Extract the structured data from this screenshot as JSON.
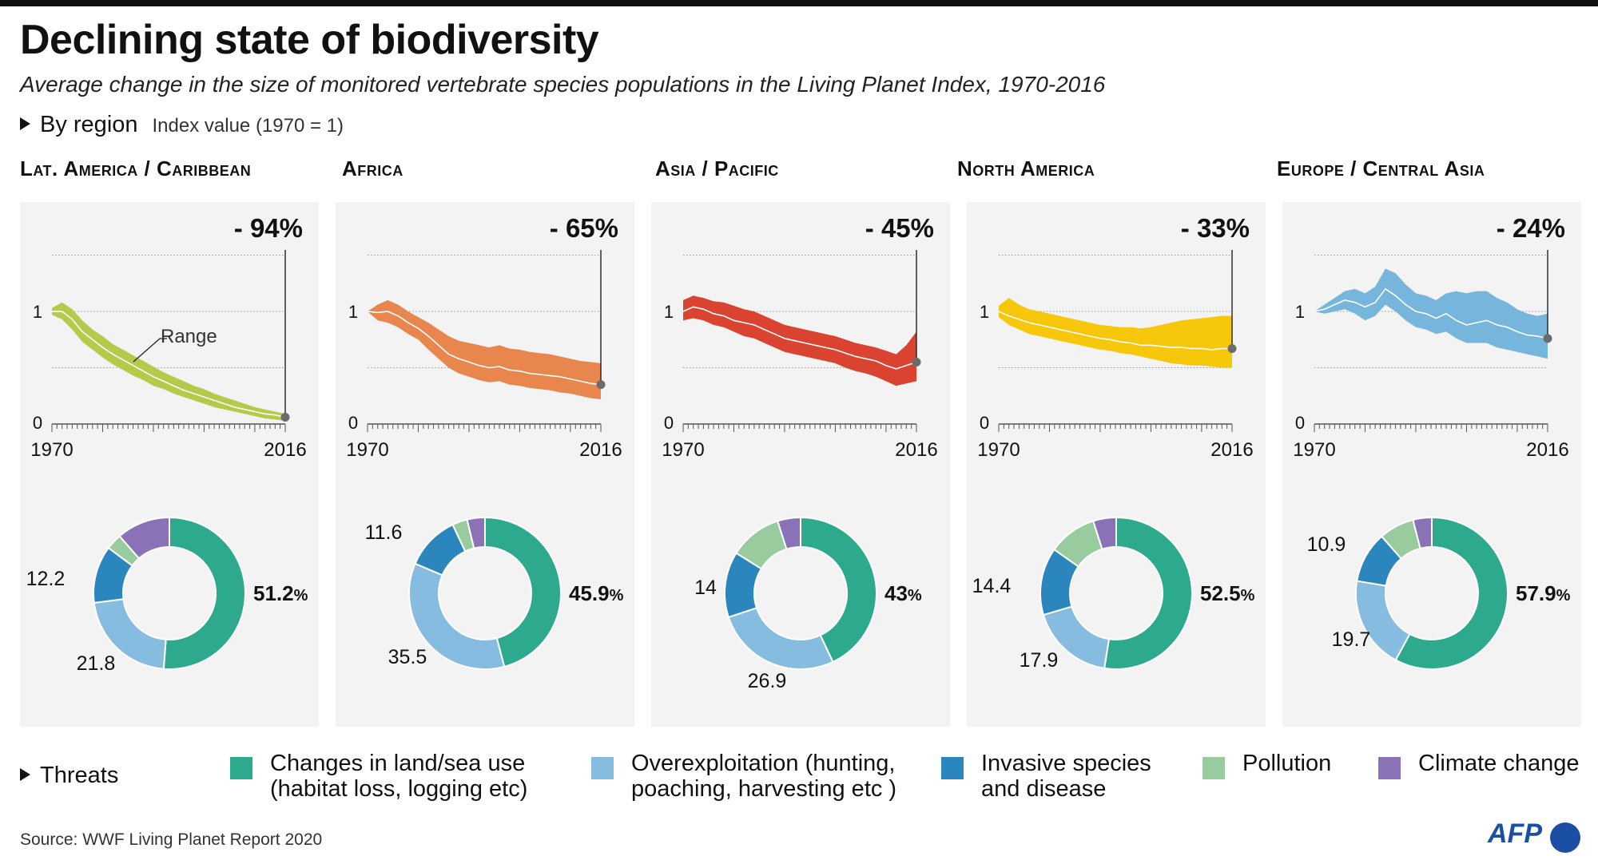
{
  "title": "Declining state of biodiversity",
  "subtitle": "Average change in the size of monitored vertebrate species populations in the Living Planet Index, 1970-2016",
  "by_region_label": "By region",
  "index_label": "Index value (1970 = 1)",
  "threats_label": "Threats",
  "source": "Source: WWF Living Planet Report 2020",
  "logo": "AFP",
  "chart_data": {
    "type": "line",
    "x_start_label": "1970",
    "x_end_label": "2016",
    "y_tick_labels": [
      "1",
      "0"
    ],
    "range_annotation": "Range",
    "threat_colors": {
      "land_sea": "#2daa8d",
      "overexploitation": "#86bcdf",
      "invasive": "#2a86bd",
      "pollution": "#98cb9d",
      "climate": "#8b72b7"
    },
    "threat_legend": [
      {
        "key": "land_sea",
        "line1": "Changes in land/sea use",
        "line2": "(habitat loss, logging etc)"
      },
      {
        "key": "overexploitation",
        "line1": "Overexploitation (hunting,",
        "line2": "poaching, harvesting etc )"
      },
      {
        "key": "invasive",
        "line1": "Invasive species",
        "line2": "and disease"
      },
      {
        "key": "pollution",
        "line1": "Pollution",
        "line2": ""
      },
      {
        "key": "climate",
        "line1": "Climate change",
        "line2": ""
      }
    ],
    "regions": [
      {
        "name": "Lat. America / Caribbean",
        "change_label": "- 94%",
        "color": "#b5c94b",
        "index": [
          1.0,
          1.0,
          0.93,
          0.82,
          0.75,
          0.68,
          0.62,
          0.57,
          0.52,
          0.47,
          0.42,
          0.38,
          0.34,
          0.3,
          0.27,
          0.24,
          0.21,
          0.18,
          0.15,
          0.13,
          0.11,
          0.09,
          0.08,
          0.06
        ],
        "upper": [
          1.03,
          1.08,
          1.02,
          0.92,
          0.84,
          0.78,
          0.71,
          0.66,
          0.61,
          0.56,
          0.51,
          0.46,
          0.42,
          0.38,
          0.34,
          0.31,
          0.27,
          0.24,
          0.21,
          0.18,
          0.15,
          0.13,
          0.11,
          0.09
        ],
        "lower": [
          0.97,
          0.93,
          0.84,
          0.73,
          0.66,
          0.59,
          0.53,
          0.48,
          0.43,
          0.39,
          0.34,
          0.31,
          0.27,
          0.24,
          0.21,
          0.18,
          0.15,
          0.13,
          0.11,
          0.09,
          0.07,
          0.05,
          0.04,
          0.03
        ],
        "threats": {
          "land_sea": 51.2,
          "overexploitation": 21.8,
          "invasive": 12.2,
          "pollution": 3.4,
          "climate": 11.4
        },
        "threat_labels": {
          "main": "51.2",
          "overexploitation": "21.8",
          "invasive": "12.2"
        },
        "pct_sign": "%"
      },
      {
        "name": "Africa",
        "change_label": "- 65%",
        "color": "#e8864d",
        "index": [
          1.0,
          0.99,
          1.0,
          0.96,
          0.9,
          0.85,
          0.78,
          0.7,
          0.62,
          0.58,
          0.55,
          0.52,
          0.5,
          0.51,
          0.48,
          0.47,
          0.45,
          0.44,
          0.43,
          0.42,
          0.4,
          0.38,
          0.36,
          0.35
        ],
        "upper": [
          1.0,
          1.06,
          1.1,
          1.06,
          1.0,
          0.95,
          0.9,
          0.84,
          0.78,
          0.74,
          0.72,
          0.7,
          0.68,
          0.7,
          0.67,
          0.66,
          0.64,
          0.63,
          0.62,
          0.6,
          0.58,
          0.56,
          0.55,
          0.54
        ],
        "lower": [
          1.0,
          0.92,
          0.9,
          0.86,
          0.8,
          0.75,
          0.66,
          0.58,
          0.5,
          0.45,
          0.42,
          0.39,
          0.37,
          0.38,
          0.35,
          0.34,
          0.32,
          0.31,
          0.3,
          0.28,
          0.27,
          0.25,
          0.23,
          0.22
        ],
        "threats": {
          "land_sea": 45.9,
          "overexploitation": 35.5,
          "invasive": 11.6,
          "pollution": 3.2,
          "climate": 3.8
        },
        "threat_labels": {
          "main": "45.9",
          "overexploitation": "35.5",
          "invasive": "11.6"
        },
        "pct_sign": "%"
      },
      {
        "name": "Asia / Pacific",
        "change_label": "- 45%",
        "color": "#d9432f",
        "index": [
          1.0,
          1.04,
          1.02,
          0.98,
          0.96,
          0.92,
          0.9,
          0.88,
          0.84,
          0.8,
          0.76,
          0.74,
          0.72,
          0.7,
          0.68,
          0.66,
          0.63,
          0.6,
          0.58,
          0.56,
          0.52,
          0.49,
          0.52,
          0.55
        ],
        "upper": [
          1.1,
          1.14,
          1.12,
          1.09,
          1.08,
          1.05,
          1.02,
          1.0,
          0.96,
          0.92,
          0.88,
          0.86,
          0.84,
          0.82,
          0.8,
          0.78,
          0.75,
          0.72,
          0.7,
          0.68,
          0.65,
          0.62,
          0.7,
          0.82
        ],
        "lower": [
          0.92,
          0.94,
          0.92,
          0.88,
          0.86,
          0.82,
          0.78,
          0.76,
          0.72,
          0.68,
          0.64,
          0.62,
          0.6,
          0.58,
          0.56,
          0.54,
          0.5,
          0.47,
          0.45,
          0.42,
          0.38,
          0.34,
          0.36,
          0.38
        ],
        "threats": {
          "land_sea": 43,
          "overexploitation": 26.9,
          "invasive": 14,
          "pollution": 11.2,
          "climate": 4.9
        },
        "threat_labels": {
          "main": "43",
          "overexploitation": "26.9",
          "invasive": "14"
        },
        "pct_sign": "%"
      },
      {
        "name": "North America",
        "change_label": "- 33%",
        "color": "#f7c70b",
        "index": [
          1.0,
          0.96,
          0.93,
          0.9,
          0.88,
          0.86,
          0.84,
          0.82,
          0.8,
          0.78,
          0.76,
          0.75,
          0.73,
          0.72,
          0.7,
          0.7,
          0.69,
          0.68,
          0.68,
          0.67,
          0.67,
          0.66,
          0.67,
          0.67
        ],
        "upper": [
          1.05,
          1.12,
          1.06,
          1.02,
          1.0,
          0.98,
          0.96,
          0.94,
          0.92,
          0.9,
          0.88,
          0.87,
          0.86,
          0.86,
          0.85,
          0.86,
          0.88,
          0.9,
          0.92,
          0.93,
          0.94,
          0.95,
          0.96,
          0.96
        ],
        "lower": [
          0.95,
          0.88,
          0.84,
          0.8,
          0.78,
          0.76,
          0.74,
          0.72,
          0.7,
          0.68,
          0.66,
          0.65,
          0.63,
          0.62,
          0.6,
          0.58,
          0.56,
          0.54,
          0.53,
          0.52,
          0.52,
          0.51,
          0.5,
          0.5
        ],
        "threats": {
          "land_sea": 52.5,
          "overexploitation": 17.9,
          "invasive": 14.4,
          "pollution": 10.3,
          "climate": 4.9
        },
        "threat_labels": {
          "main": "52.5",
          "overexploitation": "17.9",
          "invasive": "14.4"
        },
        "pct_sign": "%"
      },
      {
        "name": "Europe / Central Asia",
        "change_label": "- 24%",
        "color": "#76b5dc",
        "index": [
          1.0,
          1.02,
          1.06,
          1.1,
          1.08,
          1.04,
          1.08,
          1.2,
          1.14,
          1.06,
          1.0,
          0.98,
          0.94,
          0.98,
          0.92,
          0.88,
          0.9,
          0.92,
          0.88,
          0.86,
          0.82,
          0.79,
          0.78,
          0.76
        ],
        "upper": [
          1.0,
          1.06,
          1.12,
          1.18,
          1.2,
          1.16,
          1.22,
          1.38,
          1.34,
          1.24,
          1.16,
          1.14,
          1.1,
          1.16,
          1.18,
          1.16,
          1.18,
          1.18,
          1.12,
          1.08,
          1.02,
          0.98,
          0.96,
          0.98
        ],
        "lower": [
          1.0,
          0.98,
          1.0,
          1.02,
          0.98,
          0.92,
          0.96,
          1.06,
          1.0,
          0.92,
          0.86,
          0.84,
          0.8,
          0.82,
          0.76,
          0.72,
          0.72,
          0.72,
          0.68,
          0.66,
          0.64,
          0.62,
          0.6,
          0.58
        ],
        "threats": {
          "land_sea": 57.9,
          "overexploitation": 19.7,
          "invasive": 10.9,
          "pollution": 7.5,
          "climate": 4
        },
        "threat_labels": {
          "main": "57.9",
          "overexploitation": "19.7",
          "invasive": "10.9"
        },
        "pct_sign": "%"
      }
    ]
  }
}
